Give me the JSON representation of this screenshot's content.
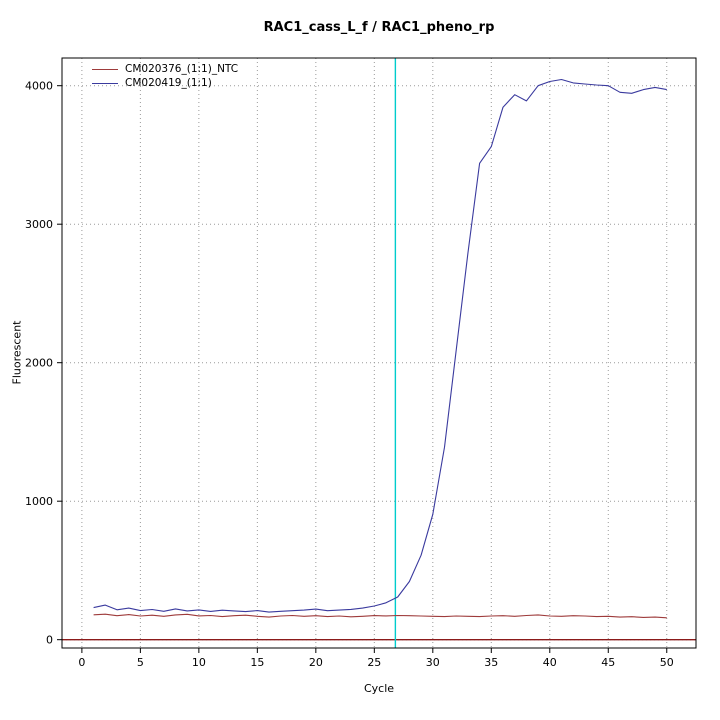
{
  "chart_data": {
    "type": "line",
    "title": "RAC1_cass_L_f / RAC1_pheno_rp",
    "xlabel": "Cycle",
    "ylabel": "Fluorescent",
    "xlim": [
      -1.7,
      52.5
    ],
    "ylim": [
      -60,
      4200
    ],
    "x_ticks": [
      0,
      5,
      10,
      15,
      20,
      25,
      30,
      35,
      40,
      45,
      50
    ],
    "y_ticks": [
      0,
      1000,
      2000,
      3000,
      4000
    ],
    "grid": "dotted",
    "grid_color": "#9a9a9a",
    "axis_color": "#000000",
    "legend_position": "top-left",
    "threshold_line": {
      "y": 0,
      "color": "#8b1a1a"
    },
    "vertical_line": {
      "x": 26.8,
      "color": "#00cccc"
    },
    "series": [
      {
        "name": "CM020376_(1:1)_NTC",
        "color": "#9e3b3b",
        "x": [
          1,
          2,
          3,
          4,
          5,
          6,
          7,
          8,
          9,
          10,
          11,
          12,
          13,
          14,
          15,
          16,
          17,
          18,
          19,
          20,
          21,
          22,
          23,
          24,
          25,
          26,
          27,
          28,
          29,
          30,
          31,
          32,
          33,
          34,
          35,
          36,
          37,
          38,
          39,
          40,
          41,
          42,
          43,
          44,
          45,
          46,
          47,
          48,
          49,
          50
        ],
        "values": [
          180,
          184,
          173,
          181,
          171,
          177,
          169,
          179,
          183,
          172,
          175,
          167,
          173,
          177,
          169,
          163,
          171,
          175,
          169,
          173,
          167,
          171,
          165,
          169,
          174,
          172,
          175,
          173,
          171,
          169,
          167,
          171,
          169,
          167,
          171,
          173,
          169,
          175,
          179,
          171,
          169,
          173,
          171,
          167,
          169,
          163,
          166,
          161,
          163,
          158
        ]
      },
      {
        "name": "CM020419_(1:1)",
        "color": "#3a3a9e",
        "x": [
          1,
          2,
          3,
          4,
          5,
          6,
          7,
          8,
          9,
          10,
          11,
          12,
          13,
          14,
          15,
          16,
          17,
          18,
          19,
          20,
          21,
          22,
          23,
          24,
          25,
          26,
          27,
          28,
          29,
          30,
          31,
          32,
          33,
          34,
          35,
          36,
          37,
          38,
          39,
          40,
          41,
          42,
          43,
          44,
          45,
          46,
          47,
          48,
          49,
          50
        ],
        "values": [
          232,
          250,
          216,
          228,
          210,
          218,
          205,
          222,
          208,
          215,
          204,
          213,
          208,
          203,
          210,
          199,
          205,
          209,
          214,
          221,
          209,
          214,
          219,
          228,
          243,
          266,
          308,
          420,
          610,
          905,
          1390,
          2090,
          2790,
          3440,
          3560,
          3845,
          3935,
          3890,
          4000,
          4030,
          4045,
          4020,
          4012,
          4005,
          4000,
          3952,
          3945,
          3972,
          3988,
          3972
        ]
      }
    ]
  }
}
